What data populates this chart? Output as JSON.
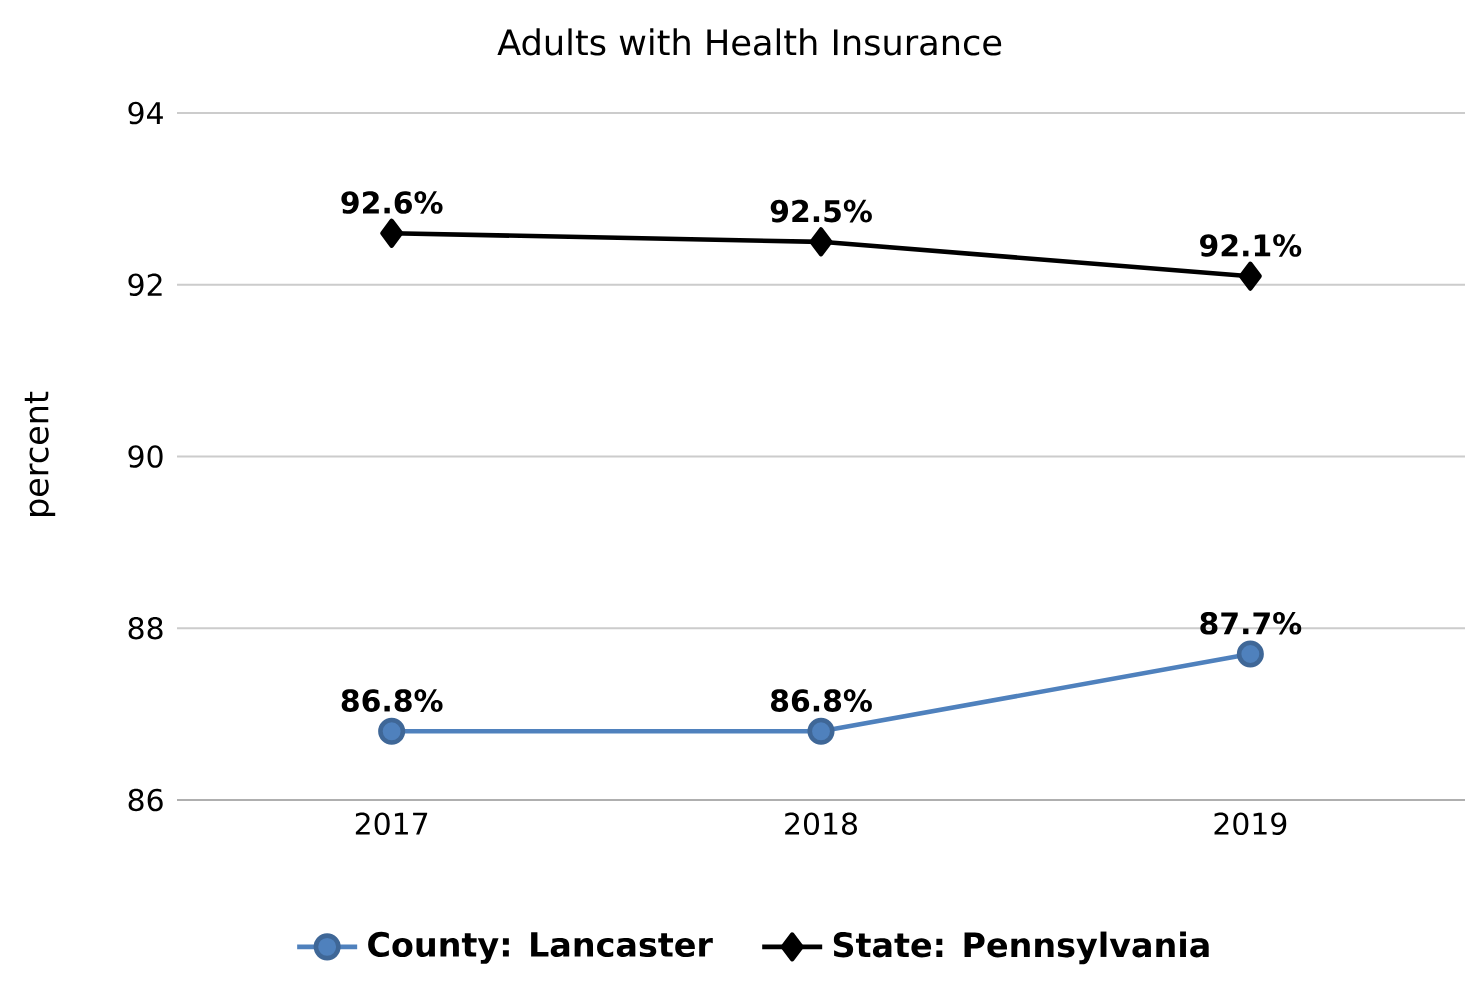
{
  "chart_data": {
    "type": "line",
    "title": "Adults with Health Insurance",
    "ylabel": "percent",
    "categories": [
      "2017",
      "2018",
      "2019"
    ],
    "series": [
      {
        "name": "County: Lancaster",
        "color": "#4f81bd",
        "marker": "circle",
        "values": [
          86.8,
          86.8,
          87.7
        ],
        "value_labels": [
          "86.8%",
          "86.8%",
          "87.7%"
        ]
      },
      {
        "name": "State: Pennsylvania",
        "color": "#000000",
        "marker": "diamond",
        "values": [
          92.6,
          92.5,
          92.1
        ],
        "value_labels": [
          "92.6%",
          "92.5%",
          "92.1%"
        ]
      }
    ],
    "ylim": [
      86,
      94
    ],
    "yticks": [
      86,
      88,
      90,
      92,
      94
    ],
    "grid": "y",
    "legend": "bottom"
  }
}
